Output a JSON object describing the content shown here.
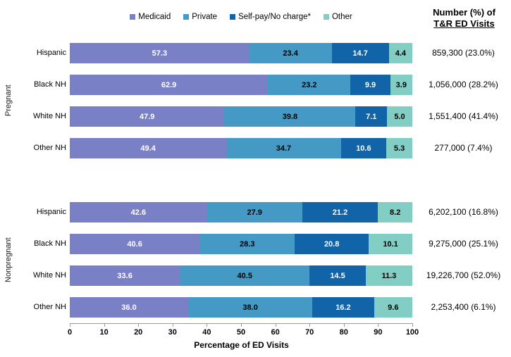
{
  "legend": {
    "items": [
      {
        "label": "Medicaid",
        "color": "#7A80C6"
      },
      {
        "label": "Private",
        "color": "#459AC5"
      },
      {
        "label": "Self-pay/No charge*",
        "color": "#1064A7"
      },
      {
        "label": "Other",
        "color": "#82CEC4"
      }
    ]
  },
  "right_column": {
    "header_line1": "Number (%) of",
    "header_line2": "T&R ED Visits"
  },
  "x_axis": {
    "label": "Percentage of ED Visits",
    "ticks": [
      0,
      10,
      20,
      30,
      40,
      50,
      60,
      70,
      80,
      90,
      100
    ]
  },
  "chart_data": {
    "type": "bar",
    "stacked": true,
    "orientation": "horizontal",
    "xlim": [
      0,
      100
    ],
    "xlabel": "Percentage of ED Visits",
    "legend_position": "top",
    "series_names": [
      "Medicaid",
      "Private",
      "Self-pay/No charge*",
      "Other"
    ],
    "series_colors": [
      "#7A80C6",
      "#459AC5",
      "#1064A7",
      "#82CEC4"
    ],
    "groups": [
      {
        "label": "Pregnant",
        "rows": [
          {
            "category": "Hispanic",
            "values": [
              57.3,
              23.4,
              14.7,
              4.4
            ],
            "number_pct": "859,300 (23.0%)"
          },
          {
            "category": "Black NH",
            "values": [
              62.9,
              23.2,
              9.9,
              3.9
            ],
            "number_pct": "1,056,000 (28.2%)"
          },
          {
            "category": "White NH",
            "values": [
              47.9,
              39.8,
              7.1,
              5.0
            ],
            "number_pct": "1,551,400 (41.4%)"
          },
          {
            "category": "Other NH",
            "values": [
              49.4,
              34.7,
              10.6,
              5.3
            ],
            "number_pct": "277,000 (7.4%)"
          }
        ]
      },
      {
        "label": "Nonpregnant",
        "rows": [
          {
            "category": "Hispanic",
            "values": [
              42.6,
              27.9,
              21.2,
              8.2
            ],
            "number_pct": "6,202,100 (16.8%)"
          },
          {
            "category": "Black NH",
            "values": [
              40.6,
              28.3,
              20.8,
              10.1
            ],
            "number_pct": "9,275,000 (25.1%)"
          },
          {
            "category": "White NH",
            "values": [
              33.6,
              40.5,
              14.5,
              11.3
            ],
            "number_pct": "19,226,700 (52.0%)"
          },
          {
            "category": "Other NH",
            "values": [
              36.0,
              38.0,
              16.2,
              9.6
            ],
            "number_pct": "2,253,400 (6.1%)"
          }
        ]
      }
    ]
  }
}
